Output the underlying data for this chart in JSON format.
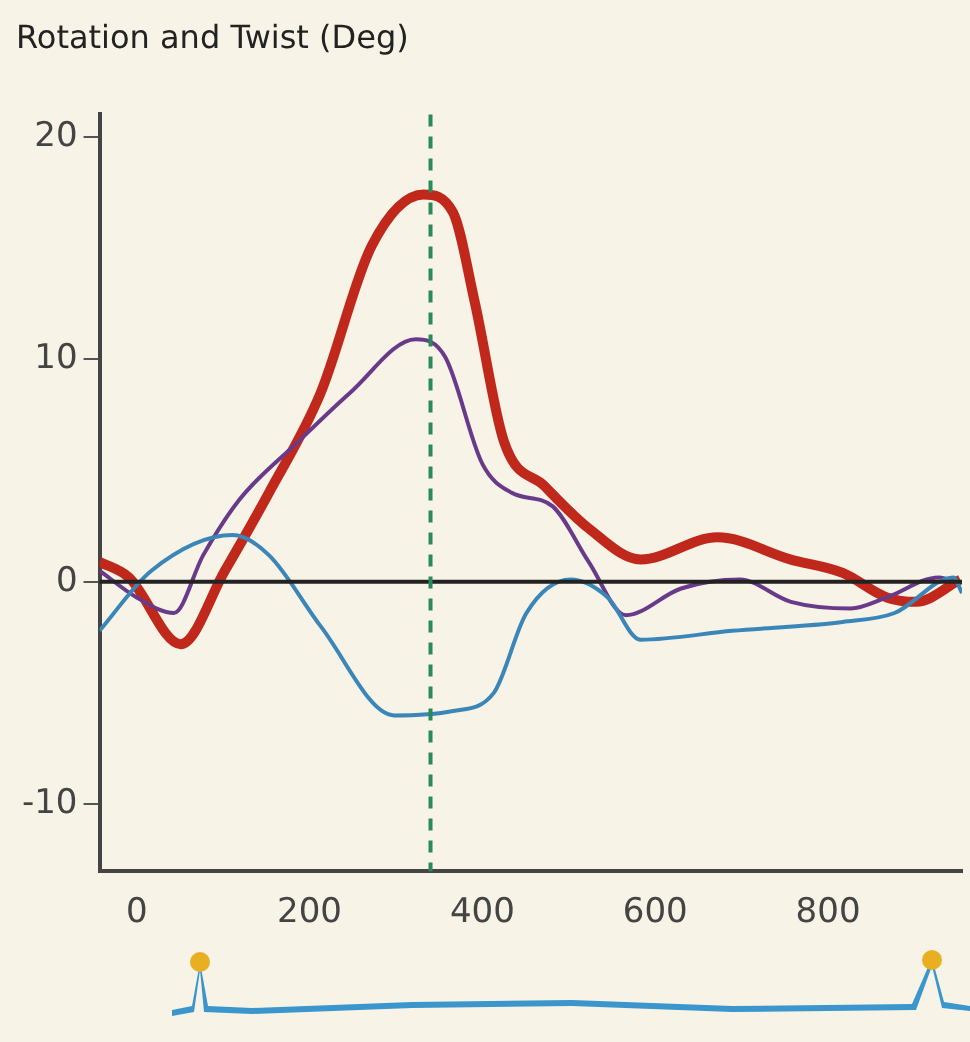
{
  "chart_data": {
    "type": "line",
    "title": "Rotation and Twist (Deg)",
    "xlim": [
      -43,
      955
    ],
    "xticks": [
      0,
      200,
      400,
      600,
      800
    ],
    "ylim": [
      -13,
      21
    ],
    "yticks": [
      -10,
      0,
      10,
      20
    ],
    "grid": false,
    "legend": false,
    "marker": "none",
    "ref_lines": [
      {
        "axis": "y",
        "value": 0,
        "color": "#222222",
        "line_style": "solid"
      },
      {
        "axis": "x",
        "value": 340,
        "color": "#2a8a5a",
        "line_style": "dashed"
      }
    ],
    "series": [
      {
        "color": "#3a86b8",
        "x": [
          -43,
          17,
          111,
          153,
          213,
          298,
          366,
          413,
          451,
          502,
          545,
          583,
          689,
          817,
          877,
          945,
          955
        ],
        "values": [
          -2.2,
          0.5,
          2.1,
          1.2,
          -2,
          -6,
          -5.8,
          -5,
          -1.4,
          0.1,
          -0.7,
          -2.6,
          -2.2,
          -1.8,
          -1.4,
          0.2,
          -0.5
        ]
      },
      {
        "color": "#6a3a8a",
        "x": [
          -43,
          0,
          43,
          77,
          119,
          187,
          247,
          323,
          357,
          400,
          434,
          481,
          523,
          566,
          630,
          698,
          757,
          826,
          868,
          928,
          953
        ],
        "values": [
          0.5,
          -0.7,
          -1.4,
          1.2,
          3.7,
          6.3,
          8.5,
          10.9,
          10.1,
          5.3,
          4,
          3.4,
          0.9,
          -1.5,
          -0.3,
          0.1,
          -0.9,
          -1.2,
          -0.7,
          0.2,
          -0.1
        ]
      },
      {
        "color": "#c0281c",
        "x": [
          -43,
          -9,
          51,
          102,
          153,
          213,
          272,
          332,
          366,
          391,
          425,
          472,
          523,
          583,
          672,
          757,
          817,
          868,
          902,
          953
        ],
        "values": [
          0.9,
          0.2,
          -2.8,
          0.5,
          4,
          8.5,
          15.1,
          17.4,
          16.6,
          12.6,
          6.3,
          4.3,
          2.4,
          1,
          2,
          1,
          0.4,
          -0.7,
          -0.9,
          0.1
        ]
      }
    ]
  }
}
